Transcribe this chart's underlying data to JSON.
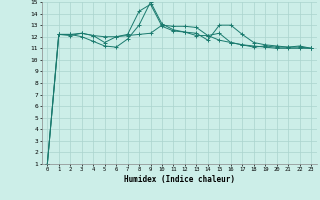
{
  "title": "",
  "xlabel": "Humidex (Indice chaleur)",
  "ylabel": "",
  "bg_color": "#cceee8",
  "grid_color": "#aad4ce",
  "line_color": "#1a7a6e",
  "xlim": [
    -0.5,
    23.5
  ],
  "ylim": [
    1,
    15
  ],
  "xtick_labels": [
    "0",
    "1",
    "2",
    "3",
    "4",
    "5",
    "6",
    "7",
    "8",
    "9",
    "10",
    "11",
    "12",
    "13",
    "14",
    "15",
    "16",
    "17",
    "18",
    "19",
    "20",
    "21",
    "22",
    "23"
  ],
  "ytick_labels": [
    "1",
    "2",
    "3",
    "4",
    "5",
    "6",
    "7",
    "8",
    "9",
    "10",
    "11",
    "12",
    "13",
    "14",
    "15"
  ],
  "series": [
    [
      1.0,
      12.2,
      12.2,
      12.0,
      11.6,
      11.2,
      11.1,
      11.8,
      13.0,
      15.0,
      13.1,
      12.6,
      12.4,
      12.3,
      11.7,
      13.0,
      13.0,
      12.2,
      11.5,
      11.3,
      11.2,
      11.1,
      11.1,
      11.0
    ],
    [
      1.0,
      12.2,
      12.2,
      12.3,
      12.1,
      12.0,
      12.0,
      12.1,
      12.2,
      12.3,
      13.0,
      12.9,
      12.9,
      12.8,
      12.1,
      12.3,
      11.5,
      11.3,
      11.2,
      11.1,
      11.0,
      11.0,
      11.0,
      11.0
    ],
    [
      1.0,
      12.2,
      12.1,
      12.3,
      12.1,
      11.5,
      12.0,
      12.2,
      14.2,
      14.8,
      12.9,
      12.5,
      12.4,
      12.1,
      12.1,
      11.7,
      11.5,
      11.3,
      11.1,
      11.2,
      11.1,
      11.1,
      11.2,
      11.0
    ]
  ]
}
